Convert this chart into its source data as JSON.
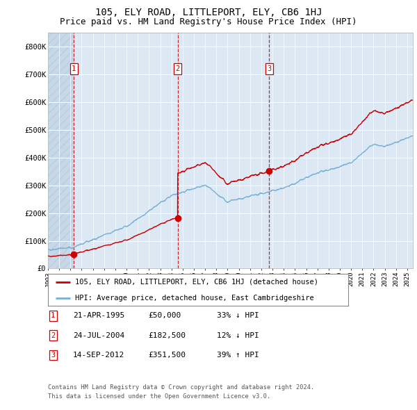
{
  "title": "105, ELY ROAD, LITTLEPORT, ELY, CB6 1HJ",
  "subtitle": "Price paid vs. HM Land Registry's House Price Index (HPI)",
  "red_label": "105, ELY ROAD, LITTLEPORT, ELY, CB6 1HJ (detached house)",
  "blue_label": "HPI: Average price, detached house, East Cambridgeshire",
  "footer1": "Contains HM Land Registry data © Crown copyright and database right 2024.",
  "footer2": "This data is licensed under the Open Government Licence v3.0.",
  "sale_points": [
    {
      "num": 1,
      "date_label": "21-APR-1995",
      "price_label": "£50,000",
      "pct_label": "33% ↓ HPI",
      "year": 1995.31,
      "price": 50000
    },
    {
      "num": 2,
      "date_label": "24-JUL-2004",
      "price_label": "£182,500",
      "pct_label": "12% ↓ HPI",
      "year": 2004.56,
      "price": 182500
    },
    {
      "num": 3,
      "date_label": "14-SEP-2012",
      "price_label": "£351,500",
      "pct_label": "39% ↑ HPI",
      "year": 2012.71,
      "price": 351500
    }
  ],
  "ylim": [
    0,
    850000
  ],
  "yticks": [
    0,
    100000,
    200000,
    300000,
    400000,
    500000,
    600000,
    700000,
    800000
  ],
  "ytick_labels": [
    "£0",
    "£100K",
    "£200K",
    "£300K",
    "£400K",
    "£500K",
    "£600K",
    "£700K",
    "£800K"
  ],
  "xlim_start": 1993,
  "xlim_end": 2025.5,
  "background_color": "#dce9f5",
  "hatch_color": "#b8cfe0",
  "grid_color": "#ffffff",
  "red_color": "#cc0000",
  "blue_color": "#7ab0d4",
  "title_fontsize": 10,
  "subtitle_fontsize": 9
}
